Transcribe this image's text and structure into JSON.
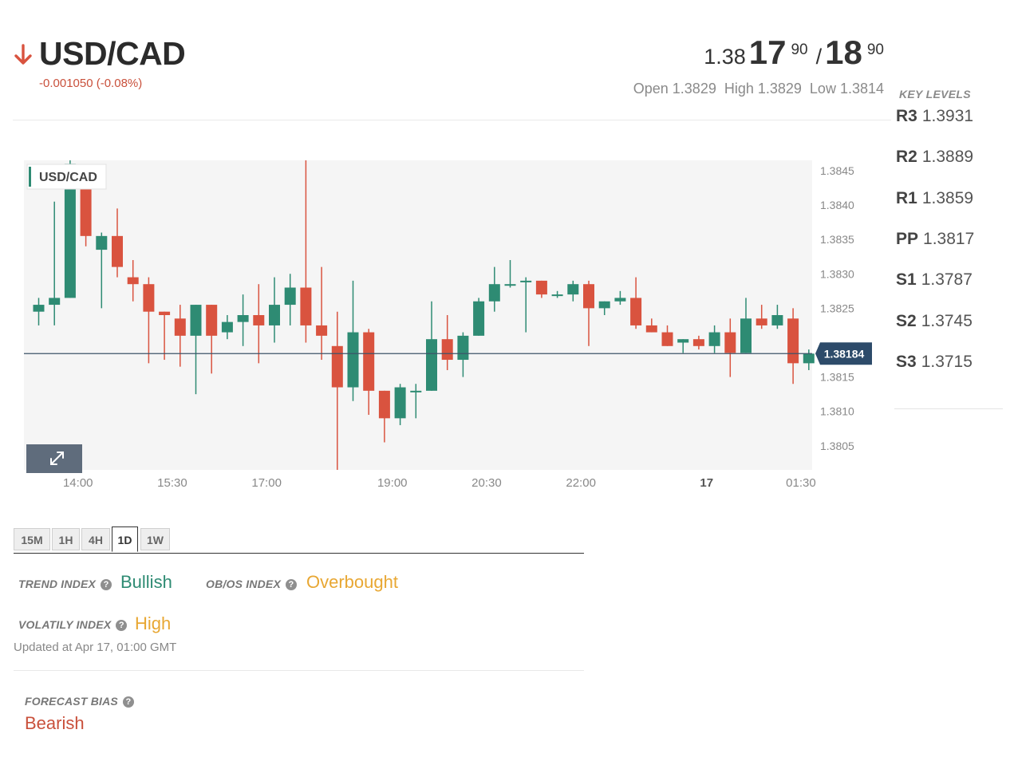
{
  "header": {
    "pair": "USD/CAD",
    "direction_icon": "down-arrow-icon",
    "change": "-0.001050 (-0.08%)",
    "bid_base": "1.38",
    "bid_big": "17",
    "bid_pip": "90",
    "separator": "/",
    "ask_big": "18",
    "ask_pip": "90",
    "open": "Open 1.3829",
    "high": "High 1.3829",
    "low": "Low 1.3814"
  },
  "key_levels": {
    "title": "KEY LEVELS",
    "levels": [
      {
        "name": "R3",
        "value": "1.3931"
      },
      {
        "name": "R2",
        "value": "1.3889"
      },
      {
        "name": "R1",
        "value": "1.3859"
      },
      {
        "name": "PP",
        "value": "1.3817"
      },
      {
        "name": "S1",
        "value": "1.3787"
      },
      {
        "name": "S2",
        "value": "1.3745"
      },
      {
        "name": "S3",
        "value": "1.3715"
      }
    ]
  },
  "colors": {
    "up": "#2e8b73",
    "down": "#d9533f",
    "accent_orange": "#e8a733",
    "label_bg": "#2d4b6a"
  },
  "chart_data": {
    "type": "candlestick",
    "legend": "USD/CAD",
    "current_price": 1.38184,
    "current_price_label": "1.38184",
    "expand_icon": "expand-icon",
    "y_ticks": [
      1.3845,
      1.384,
      1.3835,
      1.383,
      1.3825,
      1.3815,
      1.381,
      1.3805
    ],
    "y_tick_labels": [
      "1.3845",
      "1.3840",
      "1.3835",
      "1.3830",
      "1.3825",
      "1.3815",
      "1.3810",
      "1.3805"
    ],
    "ylim": [
      1.38015,
      1.38465
    ],
    "x_ticks": [
      {
        "label": "14:00",
        "index": 2.5,
        "bold": false
      },
      {
        "label": "15:30",
        "index": 8.5,
        "bold": false
      },
      {
        "label": "17:00",
        "index": 14.5,
        "bold": false
      },
      {
        "label": "19:00",
        "index": 22.5,
        "bold": false
      },
      {
        "label": "20:30",
        "index": 28.5,
        "bold": false
      },
      {
        "label": "22:00",
        "index": 34.5,
        "bold": false
      },
      {
        "label": "17",
        "index": 42.5,
        "bold": true
      },
      {
        "label": "01:30",
        "index": 48.5,
        "bold": false
      }
    ],
    "candles": [
      {
        "o": 1.38245,
        "h": 1.38265,
        "l": 1.38225,
        "c": 1.38255
      },
      {
        "o": 1.38255,
        "h": 1.38405,
        "l": 1.38225,
        "c": 1.38265
      },
      {
        "o": 1.38265,
        "h": 1.38465,
        "l": 1.38265,
        "c": 1.3846
      },
      {
        "o": 1.3844,
        "h": 1.3845,
        "l": 1.3834,
        "c": 1.38355
      },
      {
        "o": 1.38335,
        "h": 1.3836,
        "l": 1.3825,
        "c": 1.38355
      },
      {
        "o": 1.38355,
        "h": 1.38395,
        "l": 1.38295,
        "c": 1.3831
      },
      {
        "o": 1.38295,
        "h": 1.3832,
        "l": 1.3826,
        "c": 1.38285
      },
      {
        "o": 1.38285,
        "h": 1.38295,
        "l": 1.3817,
        "c": 1.38245
      },
      {
        "o": 1.38245,
        "h": 1.38245,
        "l": 1.38175,
        "c": 1.3824
      },
      {
        "o": 1.38235,
        "h": 1.38255,
        "l": 1.38165,
        "c": 1.3821
      },
      {
        "o": 1.3821,
        "h": 1.38255,
        "l": 1.38125,
        "c": 1.38255
      },
      {
        "o": 1.38255,
        "h": 1.38255,
        "l": 1.38155,
        "c": 1.3821
      },
      {
        "o": 1.38215,
        "h": 1.3824,
        "l": 1.38205,
        "c": 1.3823
      },
      {
        "o": 1.3823,
        "h": 1.3827,
        "l": 1.38195,
        "c": 1.3824
      },
      {
        "o": 1.3824,
        "h": 1.38285,
        "l": 1.3817,
        "c": 1.38225
      },
      {
        "o": 1.38225,
        "h": 1.38295,
        "l": 1.382,
        "c": 1.38255
      },
      {
        "o": 1.38255,
        "h": 1.383,
        "l": 1.38225,
        "c": 1.3828
      },
      {
        "o": 1.3828,
        "h": 1.38465,
        "l": 1.382,
        "c": 1.38225
      },
      {
        "o": 1.38225,
        "h": 1.3831,
        "l": 1.38175,
        "c": 1.3821
      },
      {
        "o": 1.38195,
        "h": 1.38245,
        "l": 1.38015,
        "c": 1.38135
      },
      {
        "o": 1.38135,
        "h": 1.3829,
        "l": 1.38115,
        "c": 1.38215
      },
      {
        "o": 1.38215,
        "h": 1.3822,
        "l": 1.38095,
        "c": 1.3813
      },
      {
        "o": 1.3813,
        "h": 1.3813,
        "l": 1.38055,
        "c": 1.3809
      },
      {
        "o": 1.3809,
        "h": 1.3814,
        "l": 1.3808,
        "c": 1.38135
      },
      {
        "o": 1.3813,
        "h": 1.3814,
        "l": 1.3809,
        "c": 1.3813
      },
      {
        "o": 1.3813,
        "h": 1.3826,
        "l": 1.3813,
        "c": 1.38205
      },
      {
        "o": 1.38205,
        "h": 1.3824,
        "l": 1.3816,
        "c": 1.38175
      },
      {
        "o": 1.38175,
        "h": 1.38215,
        "l": 1.3815,
        "c": 1.3821
      },
      {
        "o": 1.3821,
        "h": 1.38265,
        "l": 1.3821,
        "c": 1.3826
      },
      {
        "o": 1.3826,
        "h": 1.3831,
        "l": 1.38245,
        "c": 1.38285
      },
      {
        "o": 1.38285,
        "h": 1.3832,
        "l": 1.3828,
        "c": 1.38285
      },
      {
        "o": 1.3829,
        "h": 1.38295,
        "l": 1.38215,
        "c": 1.3829
      },
      {
        "o": 1.3829,
        "h": 1.3829,
        "l": 1.38265,
        "c": 1.3827
      },
      {
        "o": 1.3827,
        "h": 1.38275,
        "l": 1.38265,
        "c": 1.3827
      },
      {
        "o": 1.3827,
        "h": 1.3829,
        "l": 1.3826,
        "c": 1.38285
      },
      {
        "o": 1.38285,
        "h": 1.3829,
        "l": 1.38195,
        "c": 1.3825
      },
      {
        "o": 1.3825,
        "h": 1.3826,
        "l": 1.3824,
        "c": 1.3826
      },
      {
        "o": 1.3826,
        "h": 1.38275,
        "l": 1.38255,
        "c": 1.38265
      },
      {
        "o": 1.38265,
        "h": 1.38295,
        "l": 1.3822,
        "c": 1.38225
      },
      {
        "o": 1.38225,
        "h": 1.38235,
        "l": 1.38215,
        "c": 1.38215
      },
      {
        "o": 1.38215,
        "h": 1.38225,
        "l": 1.38195,
        "c": 1.38195
      },
      {
        "o": 1.382,
        "h": 1.38205,
        "l": 1.38185,
        "c": 1.38205
      },
      {
        "o": 1.38205,
        "h": 1.3821,
        "l": 1.3819,
        "c": 1.38195
      },
      {
        "o": 1.38195,
        "h": 1.38225,
        "l": 1.38185,
        "c": 1.38215
      },
      {
        "o": 1.38215,
        "h": 1.38235,
        "l": 1.3815,
        "c": 1.38185
      },
      {
        "o": 1.38185,
        "h": 1.38265,
        "l": 1.38185,
        "c": 1.38235
      },
      {
        "o": 1.38235,
        "h": 1.38255,
        "l": 1.3822,
        "c": 1.38225
      },
      {
        "o": 1.38225,
        "h": 1.38255,
        "l": 1.3822,
        "c": 1.3824
      },
      {
        "o": 1.38235,
        "h": 1.3825,
        "l": 1.3814,
        "c": 1.3817
      },
      {
        "o": 1.3817,
        "h": 1.3819,
        "l": 1.3816,
        "c": 1.38184
      }
    ]
  },
  "tabs": [
    "15M",
    "1H",
    "4H",
    "1D",
    "1W"
  ],
  "active_tab": "1D",
  "indices": {
    "trend_label": "TREND INDEX",
    "trend_value": "Bullish",
    "obos_label": "OB/OS INDEX",
    "obos_value": "Overbought",
    "volatility_label": "VOLATILY INDEX",
    "volatility_value": "High",
    "help_icon": "question-circle-icon",
    "updated": "Updated at Apr 17, 01:00 GMT",
    "forecast_label": "FORECAST BIAS",
    "forecast_value": "Bearish"
  }
}
